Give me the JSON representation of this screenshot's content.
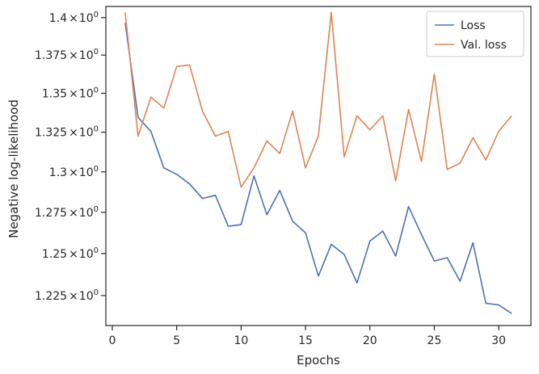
{
  "chart_data": {
    "type": "line",
    "title": "",
    "xlabel": "Epochs",
    "ylabel": "Negative log-likelihood",
    "xlim": [
      -0.5,
      32.5
    ],
    "ylim": [
      1.2075,
      1.4075
    ],
    "y_scale": "log",
    "legend_position": "top-right",
    "grid": false,
    "x_ticks": [
      0,
      5,
      10,
      15,
      20,
      25,
      30
    ],
    "x_tick_labels": [
      "0",
      "5",
      "10",
      "15",
      "20",
      "25",
      "30"
    ],
    "y_ticks": [
      1.225,
      1.25,
      1.275,
      1.3,
      1.325,
      1.35,
      1.375,
      1.4
    ],
    "y_tick_labels": [
      {
        "mantissa": "1.225",
        "times": "×",
        "base": "10",
        "exp": "0"
      },
      {
        "mantissa": "1.25",
        "times": "×",
        "base": "10",
        "exp": "0"
      },
      {
        "mantissa": "1.275",
        "times": "×",
        "base": "10",
        "exp": "0"
      },
      {
        "mantissa": "1.3",
        "times": "×",
        "base": "10",
        "exp": "0"
      },
      {
        "mantissa": "1.325",
        "times": "×",
        "base": "10",
        "exp": "0"
      },
      {
        "mantissa": "1.35",
        "times": "×",
        "base": "10",
        "exp": "0"
      },
      {
        "mantissa": "1.375",
        "times": "×",
        "base": "10",
        "exp": "0"
      },
      {
        "mantissa": "1.4",
        "times": "×",
        "base": "10",
        "exp": "0"
      }
    ],
    "x": [
      1,
      2,
      3,
      4,
      5,
      6,
      7,
      8,
      9,
      10,
      11,
      12,
      13,
      14,
      15,
      16,
      17,
      18,
      19,
      20,
      21,
      22,
      23,
      24,
      25,
      26,
      27,
      28,
      29,
      30,
      31
    ],
    "series": [
      {
        "name": "Loss",
        "color": "#4c72b0",
        "values": [
          1.3965,
          1.3345,
          1.3255,
          1.3025,
          1.2985,
          1.2925,
          1.2835,
          1.2855,
          1.2665,
          1.2675,
          1.2975,
          1.2735,
          1.2885,
          1.2695,
          1.2625,
          1.2365,
          1.2555,
          1.2495,
          1.2325,
          1.2575,
          1.2635,
          1.2485,
          1.2785,
          1.2615,
          1.2455,
          1.2475,
          1.2335,
          1.2565,
          1.2205,
          1.2195,
          1.2145
        ]
      },
      {
        "name": "Val. loss",
        "color": "#dd8452",
        "values": [
          1.4035,
          1.3225,
          1.3475,
          1.3405,
          1.3675,
          1.3685,
          1.3385,
          1.3225,
          1.3255,
          1.2905,
          1.3025,
          1.3195,
          1.3115,
          1.3385,
          1.3025,
          1.3225,
          1.4035,
          1.3095,
          1.3355,
          1.3265,
          1.3355,
          1.2945,
          1.3395,
          1.3065,
          1.3625,
          1.3015,
          1.3055,
          1.3215,
          1.3075,
          1.3255,
          1.3355
        ]
      }
    ]
  }
}
